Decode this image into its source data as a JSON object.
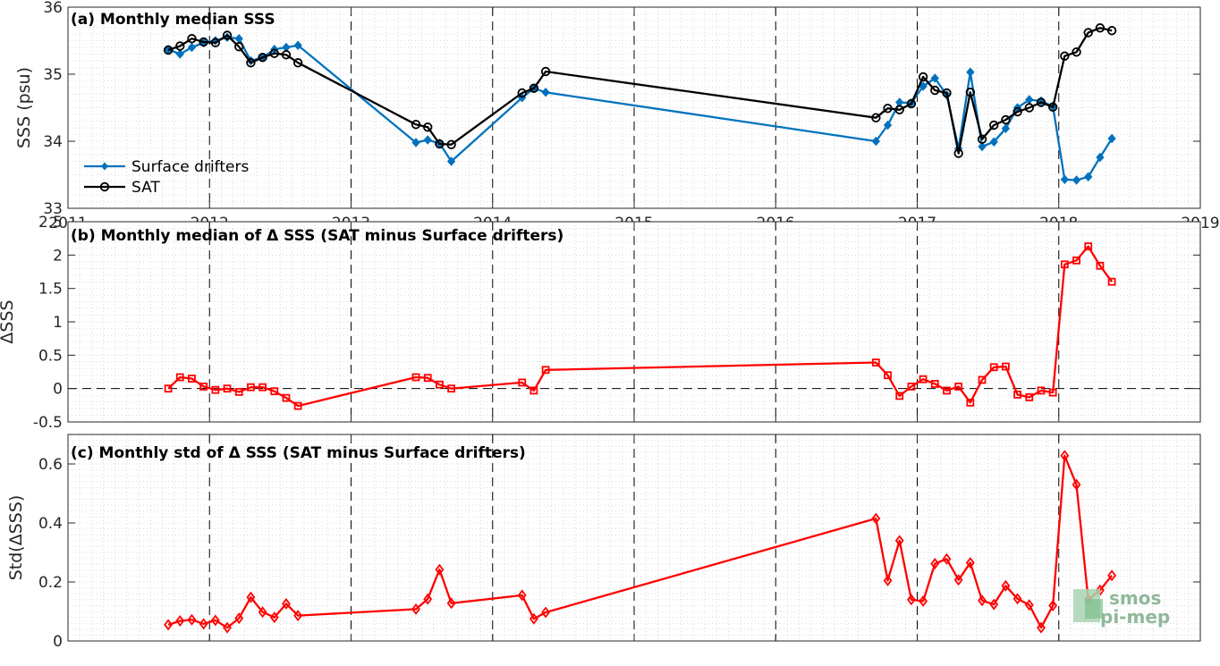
{
  "chart_data": [
    {
      "type": "line",
      "title": "(a) Monthly median SSS",
      "ylabel": "SSS (psu)",
      "xlabel": "",
      "xlim": [
        2011,
        2019
      ],
      "ylim": [
        33,
        36
      ],
      "yticks": [
        "33",
        "34",
        "35",
        "36"
      ],
      "xticks": [
        "2011",
        "2012",
        "2013",
        "2014",
        "2015",
        "2016",
        "2017",
        "2018",
        "2019"
      ],
      "grid": "minor dotted, dashed yearly",
      "legend_position": "lower-left",
      "series": [
        {
          "name": "Surface drifters",
          "color": "#0072BD",
          "marker": "diamond-filled",
          "x": [
            "2011-09",
            "2011-10",
            "2011-11",
            "2011-12",
            "2012-01",
            "2012-02",
            "2012-03",
            "2012-04",
            "2012-05",
            "2012-06",
            "2012-07",
            "2012-08",
            "2013-06",
            "2013-07",
            "2013-08",
            "2013-09",
            "2014-03",
            "2014-04",
            "2014-05",
            "2016-09",
            "2016-10",
            "2016-11",
            "2016-12",
            "2017-01",
            "2017-02",
            "2017-03",
            "2017-04",
            "2017-05",
            "2017-06",
            "2017-07",
            "2017-08",
            "2017-09",
            "2017-10",
            "2017-11",
            "2017-12",
            "2018-01",
            "2018-02",
            "2018-03",
            "2018-04",
            "2018-05"
          ],
          "values": [
            35.37,
            35.3,
            35.4,
            35.47,
            35.5,
            35.55,
            35.53,
            35.2,
            35.25,
            35.37,
            35.4,
            35.43,
            33.98,
            34.02,
            33.97,
            33.7,
            34.65,
            34.79,
            34.73,
            34.0,
            34.24,
            34.58,
            34.57,
            34.82,
            34.94,
            34.69,
            33.89,
            35.03,
            33.92,
            33.99,
            34.19,
            34.5,
            34.62,
            34.6,
            34.52,
            33.43,
            33.42,
            33.47,
            33.76,
            34.04
          ]
        },
        {
          "name": "SAT",
          "color": "#000000",
          "marker": "circle-open",
          "x": [
            "2011-09",
            "2011-10",
            "2011-11",
            "2011-12",
            "2012-01",
            "2012-02",
            "2012-03",
            "2012-04",
            "2012-05",
            "2012-06",
            "2012-07",
            "2012-08",
            "2013-06",
            "2013-07",
            "2013-08",
            "2013-09",
            "2014-03",
            "2014-04",
            "2014-05",
            "2016-09",
            "2016-10",
            "2016-11",
            "2016-12",
            "2017-01",
            "2017-02",
            "2017-03",
            "2017-04",
            "2017-05",
            "2017-06",
            "2017-07",
            "2017-08",
            "2017-09",
            "2017-10",
            "2017-11",
            "2017-12",
            "2018-01",
            "2018-02",
            "2018-03",
            "2018-04",
            "2018-05"
          ],
          "values": [
            35.36,
            35.42,
            35.53,
            35.48,
            35.47,
            35.58,
            35.41,
            35.17,
            35.25,
            35.31,
            35.29,
            35.17,
            34.25,
            34.21,
            33.96,
            33.95,
            34.72,
            34.79,
            35.04,
            34.35,
            34.49,
            34.47,
            34.56,
            34.96,
            34.76,
            34.72,
            33.82,
            34.73,
            34.03,
            34.24,
            34.32,
            34.44,
            34.5,
            34.58,
            34.51,
            35.27,
            35.33,
            35.62,
            35.69,
            35.65
          ]
        }
      ]
    },
    {
      "type": "line",
      "title": "(b) Monthly median of Δ SSS (SAT minus Surface drifters)",
      "ylabel": "ΔSSS",
      "xlabel": "",
      "xlim": [
        2011,
        2019
      ],
      "ylim": [
        -0.5,
        2.5
      ],
      "yticks": [
        "-0.5",
        "0",
        "0.5",
        "1",
        "1.5",
        "2",
        "2.5"
      ],
      "reference_line": 0,
      "series": [
        {
          "color": "#FF0000",
          "marker": "square-open",
          "x": [
            "2011-09",
            "2011-10",
            "2011-11",
            "2011-12",
            "2012-01",
            "2012-02",
            "2012-03",
            "2012-04",
            "2012-05",
            "2012-06",
            "2012-07",
            "2012-08",
            "2013-06",
            "2013-07",
            "2013-08",
            "2013-09",
            "2014-03",
            "2014-04",
            "2014-05",
            "2016-09",
            "2016-10",
            "2016-11",
            "2016-12",
            "2017-01",
            "2017-02",
            "2017-03",
            "2017-04",
            "2017-05",
            "2017-06",
            "2017-07",
            "2017-08",
            "2017-09",
            "2017-10",
            "2017-11",
            "2017-12",
            "2018-01",
            "2018-02",
            "2018-03",
            "2018-04",
            "2018-05"
          ],
          "values": [
            0.0,
            0.17,
            0.15,
            0.03,
            -0.02,
            0.0,
            -0.05,
            0.02,
            0.02,
            -0.04,
            -0.14,
            -0.26,
            0.17,
            0.16,
            0.06,
            0.0,
            0.09,
            -0.03,
            0.28,
            0.39,
            0.2,
            -0.11,
            0.03,
            0.14,
            0.07,
            -0.03,
            0.03,
            -0.21,
            0.13,
            0.32,
            0.33,
            -0.09,
            -0.13,
            -0.03,
            -0.06,
            1.86,
            1.92,
            2.13,
            1.84,
            1.6
          ]
        }
      ]
    },
    {
      "type": "line",
      "title": "(c) Monthly std of Δ SSS (SAT minus Surface drifters)",
      "ylabel": "Std(ΔSSS)",
      "xlabel": "",
      "xlim": [
        2011,
        2019
      ],
      "ylim": [
        0,
        0.7
      ],
      "yticks": [
        "0",
        "0.2",
        "0.4",
        "0.6"
      ],
      "series": [
        {
          "color": "#FF0000",
          "marker": "diamond-open",
          "x": [
            "2011-09",
            "2011-10",
            "2011-11",
            "2011-12",
            "2012-01",
            "2012-02",
            "2012-03",
            "2012-04",
            "2012-05",
            "2012-06",
            "2012-07",
            "2012-08",
            "2013-06",
            "2013-07",
            "2013-08",
            "2013-09",
            "2014-03",
            "2014-04",
            "2014-05",
            "2016-09",
            "2016-10",
            "2016-11",
            "2016-12",
            "2017-01",
            "2017-02",
            "2017-03",
            "2017-04",
            "2017-05",
            "2017-06",
            "2017-07",
            "2017-08",
            "2017-09",
            "2017-10",
            "2017-11",
            "2017-12",
            "2018-01",
            "2018-02",
            "2018-03",
            "2018-04",
            "2018-05"
          ],
          "values": [
            0.055,
            0.068,
            0.072,
            0.058,
            0.07,
            0.045,
            0.077,
            0.148,
            0.098,
            0.08,
            0.126,
            0.086,
            0.108,
            0.142,
            0.242,
            0.128,
            0.155,
            0.075,
            0.097,
            0.415,
            0.205,
            0.34,
            0.14,
            0.135,
            0.262,
            0.278,
            0.207,
            0.265,
            0.137,
            0.124,
            0.187,
            0.143,
            0.122,
            0.045,
            0.12,
            0.628,
            0.53,
            0.14,
            0.172,
            0.222
          ]
        }
      ]
    }
  ],
  "logo": {
    "line1": "smos",
    "line2": "pi-mep"
  }
}
